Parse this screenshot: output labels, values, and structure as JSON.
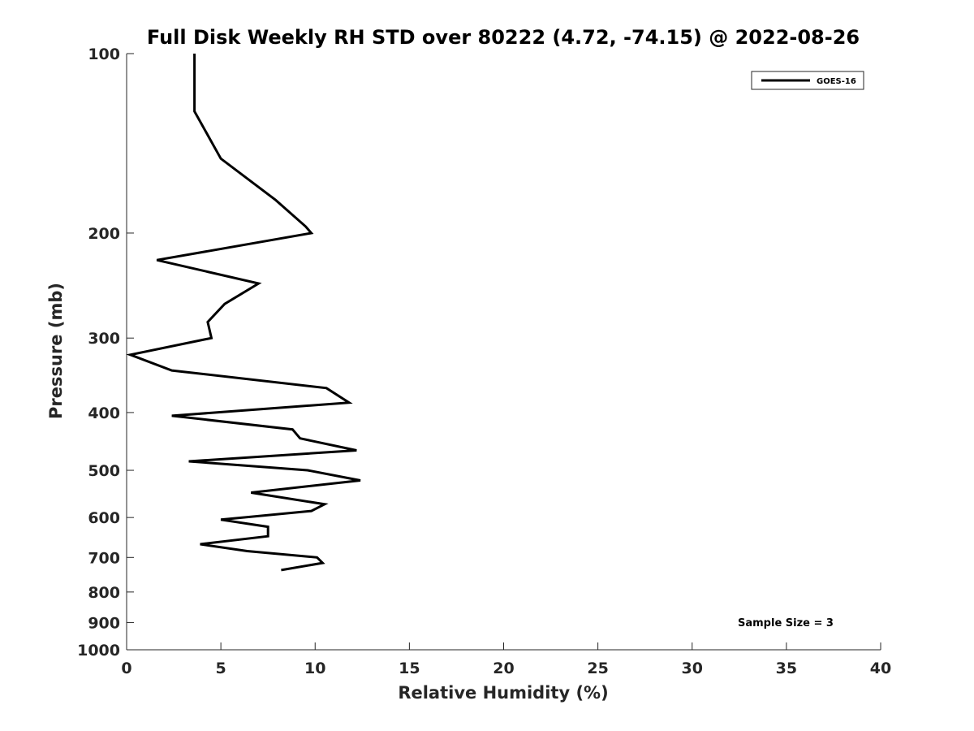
{
  "chart_data": {
    "type": "line",
    "title": "Full Disk Weekly RH STD over 80222 (4.72, -74.15) @ 2022-08-26",
    "xlabel": "Relative Humidity (%)",
    "ylabel": "Pressure (mb)",
    "xlim": [
      0,
      40
    ],
    "ylim": [
      100,
      1000
    ],
    "yscale": "log",
    "y_reversed": true,
    "xticks": [
      0,
      5,
      10,
      15,
      20,
      25,
      30,
      35,
      40
    ],
    "yticks": [
      100,
      200,
      300,
      400,
      500,
      600,
      700,
      800,
      900,
      1000
    ],
    "grid": false,
    "legend_position": "top-right",
    "series": [
      {
        "name": "GOES-16",
        "color": "#000000",
        "x": [
          3.6,
          3.6,
          5.0,
          7.9,
          9.5,
          9.8,
          1.6,
          7.0,
          5.2,
          4.3,
          4.5,
          0.2,
          2.4,
          10.6,
          11.8,
          2.4,
          8.8,
          9.2,
          12.2,
          3.3,
          9.6,
          12.4,
          6.6,
          10.5,
          9.8,
          5.0,
          7.5,
          7.5,
          3.9,
          6.4,
          10.1,
          10.4,
          8.2
        ],
        "y": [
          100,
          125,
          150,
          176,
          195,
          200,
          222,
          243,
          263,
          282,
          300,
          320,
          340,
          364,
          385,
          405,
          427,
          442,
          463,
          483,
          500,
          520,
          545,
          570,
          585,
          605,
          622,
          645,
          665,
          683,
          700,
          715,
          735
        ]
      }
    ],
    "annotations": [
      {
        "text": "Sample Size = 3",
        "position": "bottom-right"
      }
    ]
  }
}
